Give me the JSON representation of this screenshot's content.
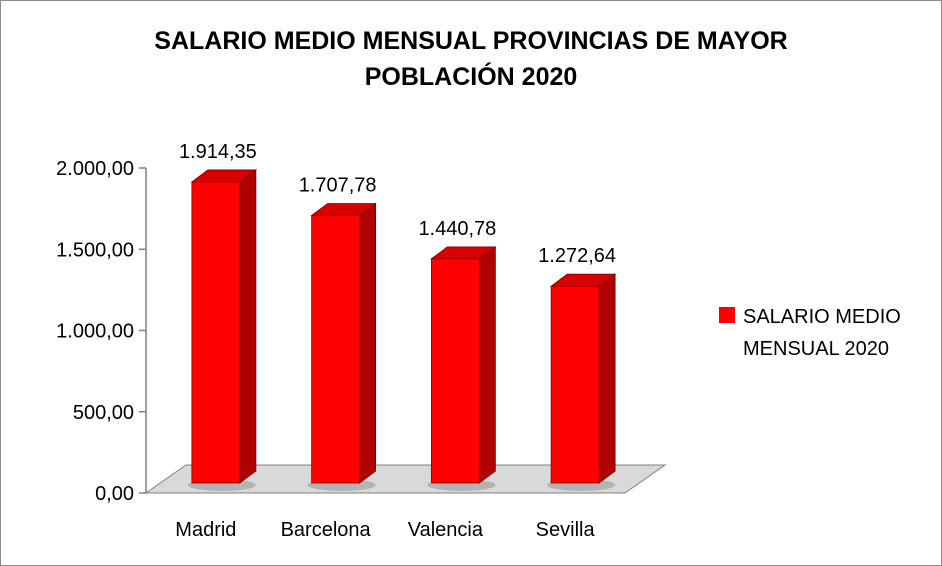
{
  "chart_data": {
    "type": "bar",
    "title_line1": "SALARIO MEDIO MENSUAL PROVINCIAS DE MAYOR",
    "title_line2": "POBLACIÓN 2020",
    "categories": [
      "Madrid",
      "Barcelona",
      "Valencia",
      "Sevilla"
    ],
    "series": [
      {
        "name_line1": "SALARIO MEDIO",
        "name_line2": "MENSUAL 2020",
        "values": [
          1914.35,
          1707.78,
          1440.78,
          1272.64
        ],
        "data_labels": [
          "1.914,35",
          "1.707,78",
          "1.440,78",
          "1.272,64"
        ]
      }
    ],
    "ylim": [
      0,
      2000
    ],
    "yticks": [
      0,
      500,
      1000,
      1500,
      2000
    ],
    "ytick_labels": [
      "0,00",
      "500,00",
      "1.000,00",
      "1.500,00",
      "2.000,00"
    ],
    "legend_position": "right",
    "grid": false,
    "style": "3d-column",
    "colors": {
      "bar_front": "#ff0000",
      "bar_side": "#b00000",
      "bar_top": "#d80000",
      "floor": "#d9d9d9"
    }
  }
}
